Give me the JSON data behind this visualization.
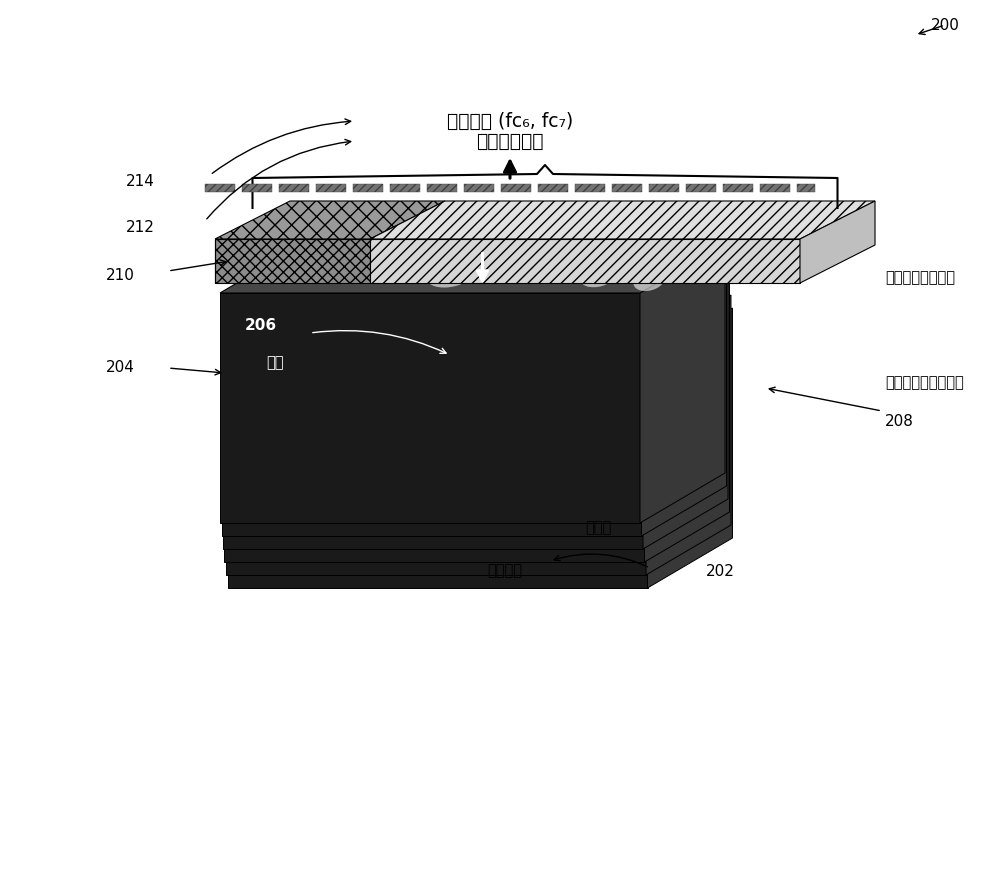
{
  "bg_color": "#ffffff",
  "labels": {
    "fc_layer": "全连接层 (fc₆, fc₇)",
    "fixed_len": "固定长度表示",
    "spp_layer": "空间金字塔池化层",
    "feat_map": "第五卷积层的特征图",
    "window": "窗口",
    "conv_layer": "卷积层",
    "input_img": "输入图像",
    "label_200": "200",
    "label_214": "214",
    "label_212": "212",
    "label_210": "210",
    "label_204": "204",
    "label_206": "206",
    "label_208": "208",
    "label_202": "202"
  },
  "text_color": "#000000"
}
